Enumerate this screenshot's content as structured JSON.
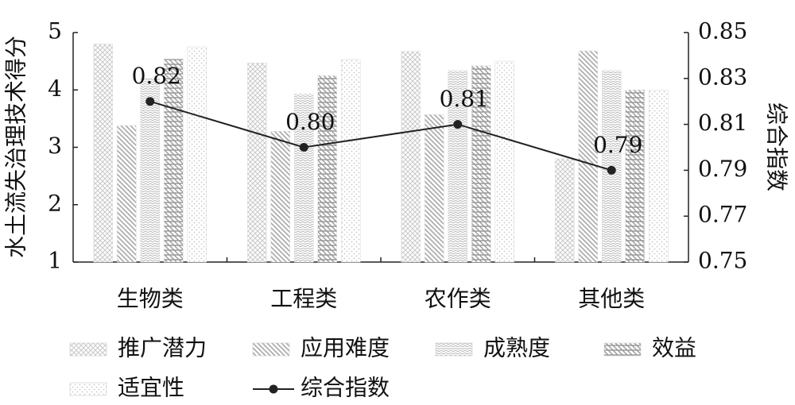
{
  "chart_data": {
    "type": "bar",
    "y_label": "水土流失治理技术得分",
    "y2_label": "综合指数",
    "categories": [
      "生物类",
      "工程类",
      "农作类",
      "其他类"
    ],
    "ylim": [
      1,
      5
    ],
    "yticks": [
      1,
      2,
      3,
      4,
      5
    ],
    "y2lim": [
      0.75,
      0.85
    ],
    "y2ticks": [
      0.75,
      0.77,
      0.79,
      0.81,
      0.83,
      0.85
    ],
    "series": [
      {
        "name": "推广潜力",
        "color": "#c8c8c8",
        "values": [
          4.8,
          4.47,
          4.67,
          2.8
        ]
      },
      {
        "name": "应用难度",
        "color": "#a8a8a8",
        "values": [
          3.38,
          3.28,
          3.57,
          4.68
        ]
      },
      {
        "name": "成熟度",
        "color": "#b8b8b8",
        "values": [
          4.2,
          3.93,
          4.34,
          4.34
        ]
      },
      {
        "name": "效益",
        "color": "#9a9a9a",
        "values": [
          4.54,
          4.25,
          4.42,
          4.0
        ]
      },
      {
        "name": "适宜性",
        "color": "#c8c8c8",
        "values": [
          4.75,
          4.53,
          4.5,
          4.0
        ]
      },
      {
        "name": "综合指数",
        "type": "line",
        "axis": "y2",
        "color": "#222222",
        "values": [
          0.82,
          0.8,
          0.81,
          0.79
        ],
        "value_labels": [
          "0.82",
          "0.80",
          "0.81",
          "0.79"
        ]
      }
    ]
  }
}
